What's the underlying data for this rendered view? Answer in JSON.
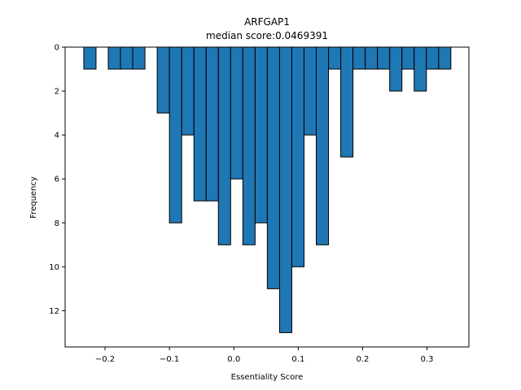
{
  "chart_data": {
    "type": "bar",
    "title": "ARFGAP1",
    "subtitle": "median score:0.0469391",
    "xlabel": "Essentiality Score",
    "ylabel": "Frequency",
    "y_inverted": true,
    "xlim": [
      -0.262,
      0.365
    ],
    "ylim": [
      0,
      13.65
    ],
    "x_ticks": [
      -0.2,
      -0.1,
      0.0,
      0.1,
      0.2,
      0.3
    ],
    "x_tick_labels": [
      "−0.2",
      "−0.1",
      "0.0",
      "0.1",
      "0.2",
      "0.3"
    ],
    "y_ticks": [
      0,
      2,
      4,
      6,
      8,
      10,
      12
    ],
    "y_tick_labels": [
      "0",
      "2",
      "4",
      "6",
      "8",
      "10",
      "12"
    ],
    "bar_width": 0.019,
    "bar_color": "#1f77b4",
    "edge_color": "#000000",
    "bars": [
      {
        "x": -0.2235,
        "value": 1
      },
      {
        "x": -0.1855,
        "value": 1
      },
      {
        "x": -0.1665,
        "value": 1
      },
      {
        "x": -0.1475,
        "value": 1
      },
      {
        "x": -0.1095,
        "value": 3
      },
      {
        "x": -0.0905,
        "value": 8
      },
      {
        "x": -0.0715,
        "value": 4
      },
      {
        "x": -0.0525,
        "value": 7
      },
      {
        "x": -0.0335,
        "value": 7
      },
      {
        "x": -0.0145,
        "value": 9
      },
      {
        "x": 0.0045,
        "value": 6
      },
      {
        "x": 0.0235,
        "value": 9
      },
      {
        "x": 0.0425,
        "value": 8
      },
      {
        "x": 0.0615,
        "value": 11
      },
      {
        "x": 0.0805,
        "value": 13
      },
      {
        "x": 0.0995,
        "value": 10
      },
      {
        "x": 0.1185,
        "value": 4
      },
      {
        "x": 0.1375,
        "value": 9
      },
      {
        "x": 0.1565,
        "value": 1
      },
      {
        "x": 0.1755,
        "value": 5
      },
      {
        "x": 0.1945,
        "value": 1
      },
      {
        "x": 0.2135,
        "value": 1
      },
      {
        "x": 0.2325,
        "value": 1
      },
      {
        "x": 0.2515,
        "value": 2
      },
      {
        "x": 0.2705,
        "value": 1
      },
      {
        "x": 0.2895,
        "value": 2
      },
      {
        "x": 0.3085,
        "value": 1
      },
      {
        "x": 0.3275,
        "value": 1
      }
    ]
  }
}
